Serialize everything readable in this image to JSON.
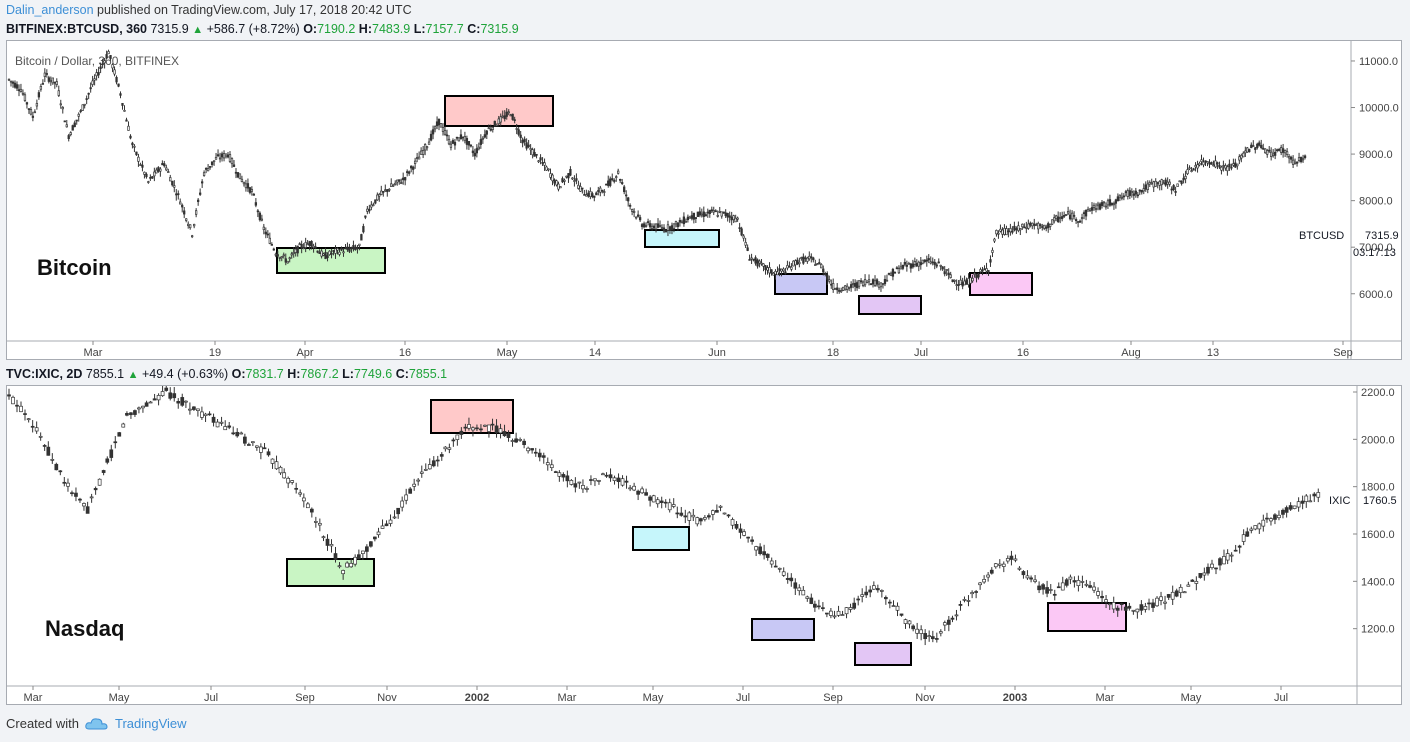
{
  "header": {
    "author": "Dalin_anderson",
    "published": "published on TradingView.com, July 17, 2018 20:42 UTC"
  },
  "btc_legend": {
    "symbol": "BITFINEX:BTCUSD, 360",
    "last": "7315.9",
    "change": "+586.7 (+8.72%)",
    "o_label": "O:",
    "o": "7190.2",
    "h_label": "H:",
    "h": "7483.9",
    "l_label": "L:",
    "l": "7157.7",
    "c_label": "C:",
    "c": "7315.9"
  },
  "ixic_legend": {
    "symbol": "TVC:IXIC, 2D",
    "last": "7855.1",
    "change": "+49.4 (+0.63%)",
    "o_label": "O:",
    "o": "7831.7",
    "h_label": "H:",
    "h": "7867.2",
    "l_label": "L:",
    "l": "7749.6",
    "c_label": "C:",
    "c": "7855.1"
  },
  "footer": {
    "created_with": "Created with",
    "brand": "TradingView"
  },
  "colors": {
    "green": "#1fa33a",
    "link": "#3d8fd6",
    "box_red": "#ffc9c9",
    "box_green": "#c9f5c4",
    "box_cyan": "#c6f6fb",
    "box_blue": "#c8c8f5",
    "box_violet": "#e3c6f5",
    "box_pink": "#fbc8f5"
  },
  "chart_data": [
    {
      "type": "candlestick",
      "title": "Bitcoin / Dollar, 360, BITFINEX",
      "annotation": "Bitcoin",
      "price_tag": {
        "label": "BTCUSD",
        "value": "7315.9",
        "countdown": "03:17:13"
      },
      "x_ticks": [
        "Mar",
        "19",
        "Apr",
        "16",
        "May",
        "14",
        "Jun",
        "18",
        "Jul",
        "16",
        "Aug",
        "13",
        "Sep"
      ],
      "y_ticks": [
        "11000.0",
        "10000.0",
        "9000.0",
        "8000.0",
        "7000.0",
        "6000.0"
      ],
      "ylim": [
        5200,
        11300
      ],
      "series": [
        {
          "name": "BTCUSD",
          "points": [
            [
              0,
              10600
            ],
            [
              6,
              10400
            ],
            [
              12,
              9800
            ],
            [
              18,
              10700
            ],
            [
              24,
              10500
            ],
            [
              30,
              9400
            ],
            [
              36,
              9900
            ],
            [
              42,
              10500
            ],
            [
              50,
              11200
            ],
            [
              56,
              10300
            ],
            [
              62,
              9200
            ],
            [
              70,
              8400
            ],
            [
              78,
              8800
            ],
            [
              86,
              8000
            ],
            [
              92,
              7300
            ],
            [
              98,
              8600
            ],
            [
              104,
              8900
            ],
            [
              110,
              9000
            ],
            [
              116,
              8500
            ],
            [
              122,
              8200
            ],
            [
              128,
              7400
            ],
            [
              134,
              6900
            ],
            [
              140,
              6700
            ],
            [
              146,
              7000
            ],
            [
              152,
              7100
            ],
            [
              158,
              6800
            ],
            [
              164,
              6900
            ],
            [
              170,
              6950
            ],
            [
              176,
              7000
            ],
            [
              180,
              7800
            ],
            [
              186,
              8100
            ],
            [
              192,
              8300
            ],
            [
              198,
              8450
            ],
            [
              204,
              8800
            ],
            [
              210,
              9200
            ],
            [
              216,
              9700
            ],
            [
              222,
              9200
            ],
            [
              228,
              9400
            ],
            [
              234,
              9000
            ],
            [
              240,
              9500
            ],
            [
              246,
              9700
            ],
            [
              252,
              9900
            ],
            [
              258,
              9300
            ],
            [
              264,
              9000
            ],
            [
              270,
              8700
            ],
            [
              276,
              8300
            ],
            [
              282,
              8600
            ],
            [
              288,
              8200
            ],
            [
              294,
              8100
            ],
            [
              300,
              8300
            ],
            [
              306,
              8600
            ],
            [
              312,
              7900
            ],
            [
              318,
              7500
            ],
            [
              324,
              7450
            ],
            [
              330,
              7400
            ],
            [
              336,
              7500
            ],
            [
              342,
              7650
            ],
            [
              348,
              7700
            ],
            [
              354,
              7750
            ],
            [
              360,
              7700
            ],
            [
              366,
              7600
            ],
            [
              372,
              6800
            ],
            [
              378,
              6600
            ],
            [
              384,
              6450
            ],
            [
              390,
              6500
            ],
            [
              396,
              6700
            ],
            [
              402,
              6750
            ],
            [
              408,
              6600
            ],
            [
              414,
              6150
            ],
            [
              420,
              6100
            ],
            [
              426,
              6200
            ],
            [
              432,
              6300
            ],
            [
              438,
              6200
            ],
            [
              444,
              6450
            ],
            [
              450,
              6600
            ],
            [
              456,
              6650
            ],
            [
              462,
              6700
            ],
            [
              468,
              6600
            ],
            [
              474,
              6300
            ],
            [
              480,
              6200
            ],
            [
              486,
              6400
            ],
            [
              492,
              6550
            ],
            [
              496,
              7300
            ],
            [
              502,
              7350
            ],
            [
              508,
              7400
            ],
            [
              514,
              7500
            ],
            [
              520,
              7400
            ],
            [
              526,
              7600
            ],
            [
              532,
              7700
            ],
            [
              538,
              7600
            ],
            [
              544,
              7850
            ],
            [
              550,
              7900
            ],
            [
              556,
              8000
            ],
            [
              562,
              8150
            ],
            [
              568,
              8200
            ],
            [
              574,
              8350
            ],
            [
              580,
              8400
            ],
            [
              586,
              8250
            ],
            [
              592,
              8600
            ],
            [
              598,
              8800
            ],
            [
              604,
              8850
            ],
            [
              610,
              8700
            ],
            [
              616,
              8750
            ],
            [
              622,
              9100
            ],
            [
              628,
              9200
            ],
            [
              634,
              9000
            ],
            [
              640,
              9100
            ],
            [
              646,
              8800
            ],
            [
              652,
              8950
            ]
          ]
        }
      ]
    },
    {
      "type": "candlestick",
      "annotation": "Nasdaq",
      "price_tag": {
        "label": "IXIC",
        "value": "1760.5"
      },
      "x_ticks": [
        "Mar",
        "May",
        "Jul",
        "Sep",
        "Nov",
        "2002",
        "Mar",
        "May",
        "Jul",
        "Sep",
        "Nov",
        "2003",
        "Mar",
        "May",
        "Jul"
      ],
      "y_ticks": [
        "2200.0",
        "2000.0",
        "1800.0",
        "1600.0",
        "1400.0",
        "1200.0"
      ],
      "ylim": [
        1000,
        2200
      ],
      "series": [
        {
          "name": "IXIC",
          "points": [
            [
              0,
              2180
            ],
            [
              10,
              2100
            ],
            [
              20,
              1950
            ],
            [
              30,
              1800
            ],
            [
              40,
              1700
            ],
            [
              50,
              1900
            ],
            [
              60,
              2100
            ],
            [
              70,
              2150
            ],
            [
              80,
              2200
            ],
            [
              90,
              2150
            ],
            [
              100,
              2100
            ],
            [
              110,
              2050
            ],
            [
              120,
              2000
            ],
            [
              130,
              1950
            ],
            [
              140,
              1850
            ],
            [
              150,
              1750
            ],
            [
              160,
              1600
            ],
            [
              170,
              1450
            ],
            [
              178,
              1500
            ],
            [
              188,
              1600
            ],
            [
              198,
              1700
            ],
            [
              210,
              1850
            ],
            [
              222,
              1950
            ],
            [
              234,
              2050
            ],
            [
              246,
              2050
            ],
            [
              258,
              2000
            ],
            [
              268,
              1950
            ],
            [
              280,
              1850
            ],
            [
              292,
              1800
            ],
            [
              304,
              1850
            ],
            [
              316,
              1800
            ],
            [
              328,
              1750
            ],
            [
              340,
              1700
            ],
            [
              352,
              1650
            ],
            [
              362,
              1700
            ],
            [
              374,
              1600
            ],
            [
              386,
              1500
            ],
            [
              398,
              1400
            ],
            [
              410,
              1300
            ],
            [
              420,
              1250
            ],
            [
              430,
              1300
            ],
            [
              440,
              1380
            ],
            [
              450,
              1300
            ],
            [
              460,
              1200
            ],
            [
              470,
              1150
            ],
            [
              480,
              1250
            ],
            [
              490,
              1350
            ],
            [
              500,
              1450
            ],
            [
              510,
              1500
            ],
            [
              520,
              1400
            ],
            [
              530,
              1350
            ],
            [
              540,
              1400
            ],
            [
              550,
              1380
            ],
            [
              560,
              1300
            ],
            [
              570,
              1280
            ],
            [
              580,
              1300
            ],
            [
              590,
              1330
            ],
            [
              600,
              1380
            ],
            [
              610,
              1450
            ],
            [
              620,
              1500
            ],
            [
              630,
              1600
            ],
            [
              640,
              1650
            ],
            [
              650,
              1700
            ],
            [
              660,
              1750
            ],
            [
              668,
              1760
            ]
          ]
        }
      ]
    }
  ],
  "boxes_btc": [
    {
      "name": "green-zone",
      "color": "box_green",
      "label": ""
    },
    {
      "name": "red-zone",
      "color": "box_red",
      "label": ""
    },
    {
      "name": "cyan-zone",
      "color": "box_cyan",
      "label": ""
    },
    {
      "name": "blue-zone",
      "color": "box_blue",
      "label": ""
    },
    {
      "name": "violet-zone",
      "color": "box_violet",
      "label": ""
    },
    {
      "name": "pink-zone",
      "color": "box_pink",
      "label": ""
    }
  ]
}
